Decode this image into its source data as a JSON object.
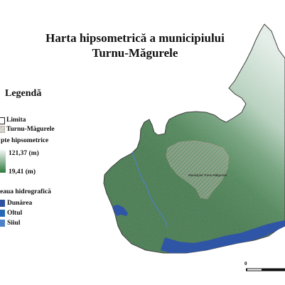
{
  "title": {
    "line1": "Harta hipsometrică a municipiului",
    "line2": "Turnu-Măgurele"
  },
  "legend": {
    "heading": "Legendă",
    "boundary_label": "Limita",
    "town_label": "Turnu-Măgurele",
    "elevation_heading": "pte hipsometrice",
    "elevation_max": "121,37 (m)",
    "elevation_min": "19,41 (m)",
    "hydro_heading": "eaua hidrografică",
    "rivers": [
      {
        "name": "Dunărea",
        "color": "#2f4fa0"
      },
      {
        "name": "Oltul",
        "color": "#2668b8"
      },
      {
        "name": "Siiul",
        "color": "#4e82c8"
      }
    ]
  },
  "map": {
    "town_label": "Municipiul Turnu-Măgurele",
    "scale_zero": "0"
  },
  "colors": {
    "low_elevation": "#3f7e4c",
    "high_elevation": "#e6f1ea",
    "water": "#2f55a6",
    "boundary": "#222222"
  }
}
